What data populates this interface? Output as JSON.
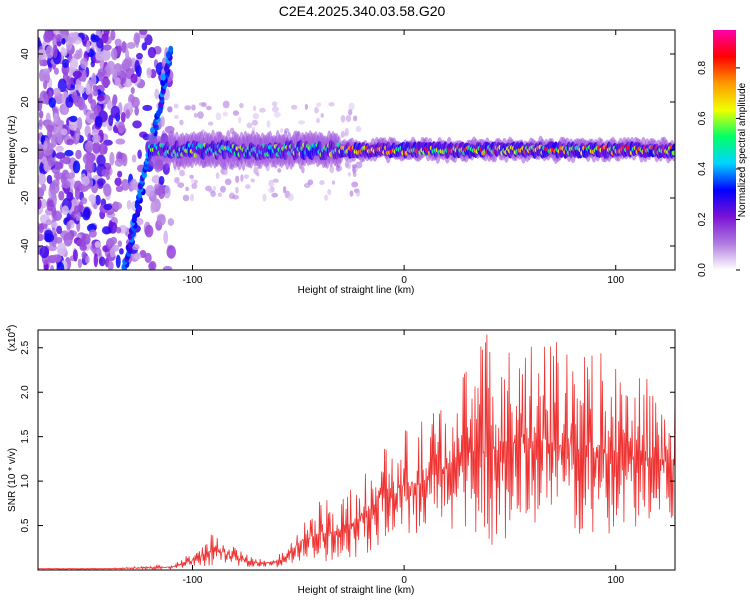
{
  "title": "C2E4.2025.340.03.58.G20",
  "chart_data": [
    {
      "type": "heatmap",
      "name": "spectrogram",
      "xlabel": "Height of straight line (km)",
      "ylabel": "Frequency (Hz)",
      "xlim": [
        -173,
        128
      ],
      "ylim": [
        -50,
        50
      ],
      "xticks": [
        -100,
        0,
        100
      ],
      "yticks": [
        -40,
        -20,
        0,
        20,
        40
      ],
      "colorbar": {
        "label": "Normalized spectral amplitude",
        "range": [
          0,
          0.95
        ],
        "ticks": [
          0.0,
          0.2,
          0.4,
          0.6,
          0.8
        ],
        "colors": [
          "#ffffff",
          "#b07ae0",
          "#7b12d6",
          "#0000ff",
          "#00d4ff",
          "#00ff66",
          "#f0ff00",
          "#ff9900",
          "#ff0000",
          "#ff00aa"
        ]
      },
      "features": [
        {
          "name": "main-band",
          "x_range": [
            -120,
            128
          ],
          "freq_center": 0,
          "freq_halfwidth": 4,
          "peak_amplitude": 0.9
        },
        {
          "name": "slanted-streak",
          "x_range": [
            -132,
            -110
          ],
          "freq_range": [
            -50,
            42
          ]
        },
        {
          "name": "noise-region",
          "x_range": [
            -173,
            -110
          ],
          "freq_range": [
            -50,
            50
          ]
        }
      ]
    },
    {
      "type": "line",
      "name": "snr",
      "xlabel": "Height of straight line (km)",
      "ylabel": "SNR (10 * v/v)",
      "yscale_label": "(x10",
      "yscale_exp": "4",
      "color": "#ee3333",
      "xlim": [
        -173,
        128
      ],
      "ylim": [
        0,
        2.7
      ],
      "xticks": [
        -100,
        0,
        100
      ],
      "yticks": [
        0.5,
        1.0,
        1.5,
        2.0,
        2.5
      ],
      "envelope": {
        "x": [
          -173,
          -140,
          -110,
          -100,
          -90,
          -80,
          -70,
          -60,
          -55,
          -50,
          -40,
          -30,
          -20,
          -10,
          0,
          10,
          20,
          30,
          40,
          60,
          80,
          100,
          128
        ],
        "y_max": [
          0.02,
          0.02,
          0.06,
          0.2,
          0.45,
          0.25,
          0.14,
          0.16,
          0.25,
          0.55,
          0.78,
          0.85,
          1.15,
          1.45,
          1.62,
          1.72,
          2.05,
          2.4,
          2.7,
          2.6,
          2.55,
          2.45,
          2.0
        ],
        "y_min": [
          0.01,
          0.01,
          0.01,
          0.03,
          0.05,
          0.05,
          0.03,
          0.03,
          0.05,
          0.1,
          0.1,
          0.1,
          0.15,
          0.3,
          0.3,
          0.4,
          0.45,
          0.45,
          0.2,
          0.5,
          0.4,
          0.35,
          0.6
        ]
      }
    }
  ]
}
